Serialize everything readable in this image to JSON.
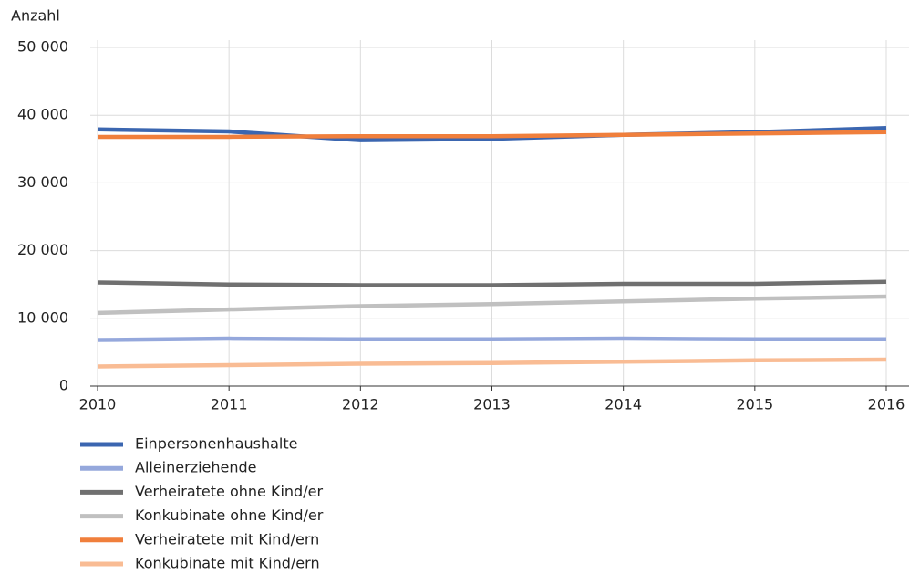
{
  "chart_data": {
    "type": "line",
    "y_label": "Anzahl",
    "x": [
      2010,
      2011,
      2012,
      2013,
      2014,
      2015,
      2016
    ],
    "xlim": [
      2010,
      2016
    ],
    "xticks": [
      2010,
      2011,
      2012,
      2013,
      2014,
      2015,
      2016
    ],
    "ylim": [
      0,
      50000
    ],
    "yticks": [
      0,
      {
        "value": 10000,
        "label": "10 000"
      },
      {
        "value": 20000,
        "label": "20 000"
      },
      {
        "value": 30000,
        "label": "30 000"
      },
      {
        "value": 40000,
        "label": "40 000"
      },
      {
        "value": 50000,
        "label": "50 000"
      }
    ],
    "grid": true,
    "legend": "bottom",
    "series": [
      {
        "name": "Einpersonenhaushalte",
        "color": "#3b66b0",
        "values": [
          37900,
          37600,
          36300,
          36500,
          37100,
          37500,
          38100
        ]
      },
      {
        "name": "Alleinerziehende",
        "color": "#95a8dc",
        "values": [
          6800,
          7000,
          6900,
          6900,
          7000,
          6900,
          6900
        ]
      },
      {
        "name": "Verheiratete ohne Kind/er",
        "color": "#707070",
        "values": [
          15300,
          15000,
          14900,
          14900,
          15100,
          15100,
          15400
        ]
      },
      {
        "name": "Konkubinate ohne Kind/er",
        "color": "#c0c0c0",
        "values": [
          10800,
          11300,
          11800,
          12100,
          12500,
          12900,
          13200
        ]
      },
      {
        "name": "Verheiratete mit Kind/ern",
        "color": "#f07f3c",
        "values": [
          36800,
          36800,
          36900,
          36900,
          37100,
          37300,
          37500
        ]
      },
      {
        "name": "Konkubinate mit Kind/ern",
        "color": "#f9bc94",
        "values": [
          2900,
          3100,
          3300,
          3400,
          3600,
          3800,
          3900
        ]
      }
    ]
  }
}
